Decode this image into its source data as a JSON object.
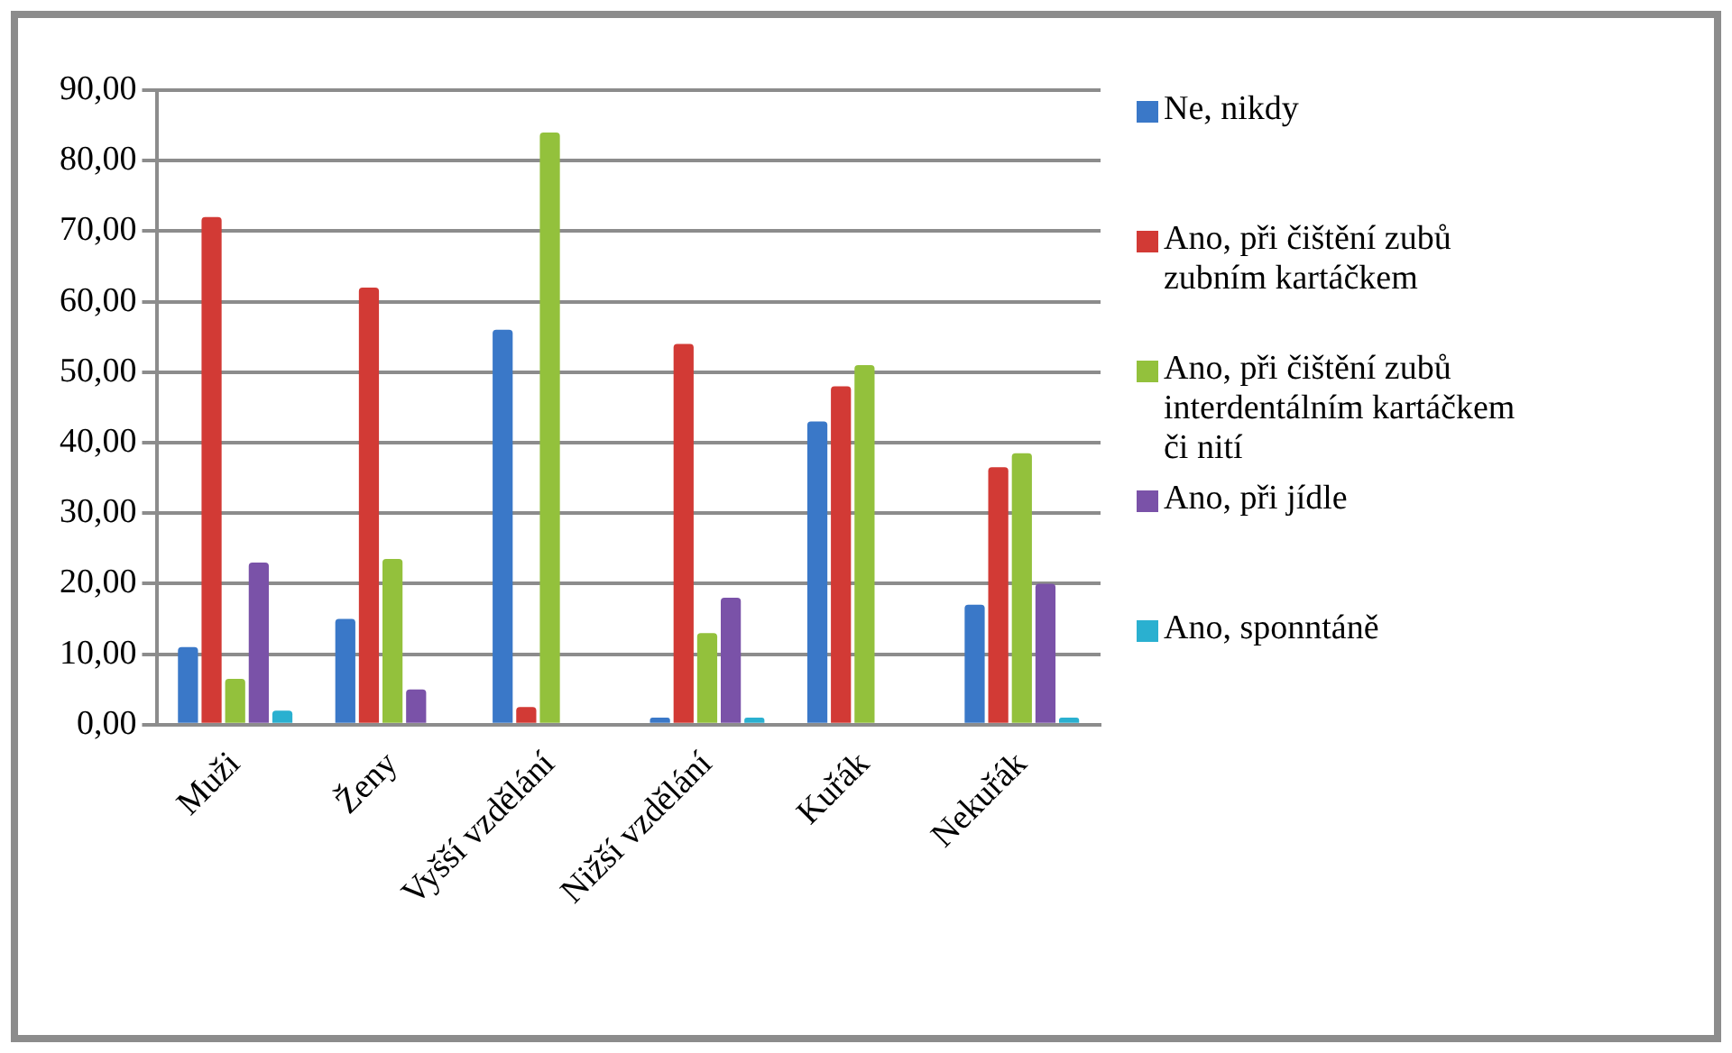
{
  "chart_data": {
    "type": "bar",
    "categories": [
      "Muži",
      "Ženy",
      "Vyšší vzdělání",
      "Nižší vzdělání",
      "Kuřák",
      "Nekuřák"
    ],
    "series": [
      {
        "name": "Ne, nikdy",
        "color": "#3a78c8",
        "values": [
          11,
          15,
          56,
          1,
          43,
          17
        ]
      },
      {
        "name": "Ano, při čištění zubů zubním kartáčkem",
        "color": "#d23a35",
        "values": [
          72,
          62,
          2.5,
          54,
          48,
          36.5
        ]
      },
      {
        "name": "Ano, při čištění zubů interdentálním kartáčkem či nití",
        "color": "#93c13c",
        "values": [
          6.5,
          23.5,
          84,
          13,
          51,
          38.5
        ]
      },
      {
        "name": "Ano, při jídle",
        "color": "#7a52a8",
        "values": [
          23,
          5,
          null,
          18,
          null,
          20
        ]
      },
      {
        "name": "Ano, sponntáně",
        "color": "#2ab0d0",
        "values": [
          2,
          null,
          null,
          1,
          null,
          1
        ]
      }
    ],
    "ylim": [
      0,
      90
    ],
    "yticks": [
      {
        "value": 0,
        "label": "0,00"
      },
      {
        "value": 10,
        "label": "10,00"
      },
      {
        "value": 20,
        "label": "20,00"
      },
      {
        "value": 30,
        "label": "30,00"
      },
      {
        "value": 40,
        "label": "40,00"
      },
      {
        "value": 50,
        "label": "50,00"
      },
      {
        "value": 60,
        "label": "60,00"
      },
      {
        "value": 70,
        "label": "70,00"
      },
      {
        "value": 80,
        "label": "80,00"
      },
      {
        "value": 90,
        "label": "90,00"
      }
    ],
    "grid": "y",
    "legend": "right"
  }
}
